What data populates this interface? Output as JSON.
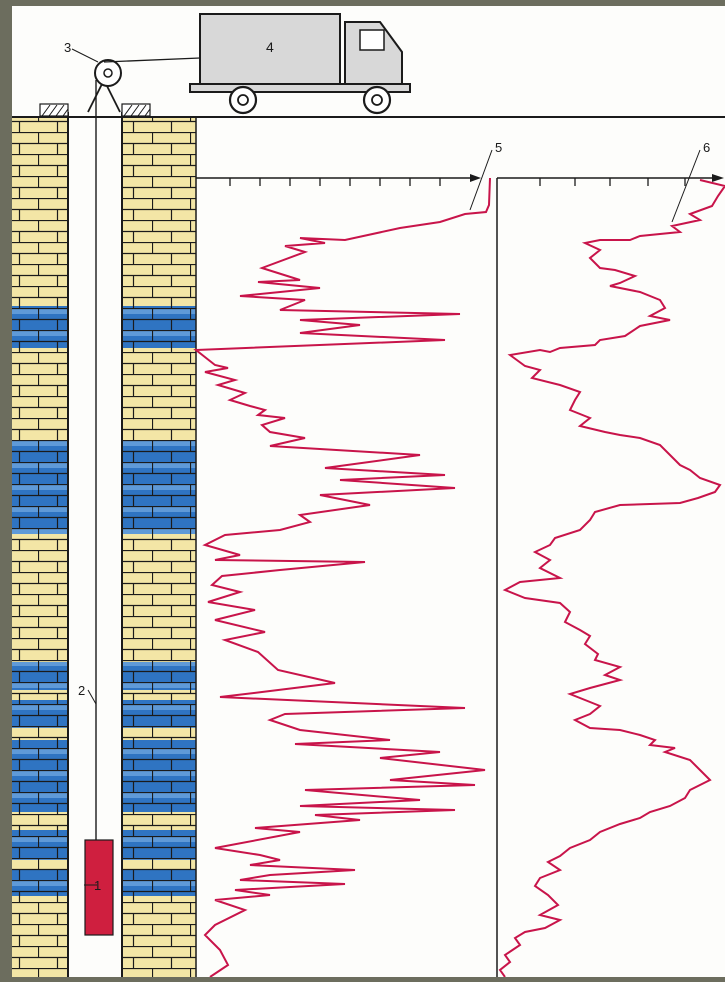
{
  "labels": {
    "probe": "1",
    "cable": "2",
    "pulley": "3",
    "truck": "4",
    "log_curve_a": "5",
    "log_curve_b": "6"
  },
  "colors": {
    "frame": "#6c6d5e",
    "paper": "#fdfdfb",
    "limestone": "#f3e6a6",
    "dolomite": "#2f74c2",
    "mortar": "#1b1b1b",
    "curve": "#c8144a",
    "probe": "#cf1f3f",
    "truck": "#d8d8d8"
  },
  "icons": [
    "pulley-icon",
    "truck-icon",
    "probe-icon",
    "brick-pattern"
  ]
}
